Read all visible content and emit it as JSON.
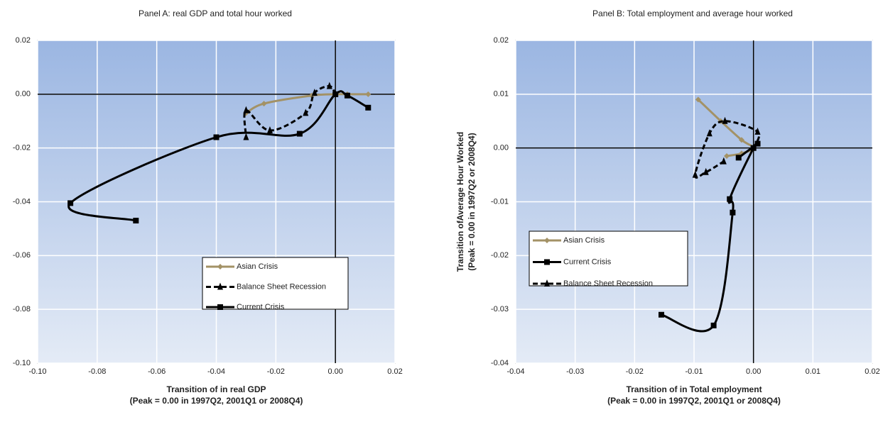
{
  "chart_data": [
    {
      "type": "line",
      "title": "Panel A: real GDP and total hour worked",
      "xlabel": [
        "Transition of in real GDP",
        "(Peak = 0.00 in 1997Q2, 2001Q1 or 2008Q4)"
      ],
      "xlim": [
        -0.1,
        0.02
      ],
      "ylim": [
        -0.1,
        0.02
      ],
      "xticks": [
        {
          "value": -0.1,
          "label": "-0.10"
        },
        -0.08,
        -0.06,
        -0.04,
        -0.02,
        {
          "value": 0,
          "label": "0.00"
        },
        0.02
      ],
      "yticks": [
        {
          "value": -0.1,
          "label": "-0.10"
        },
        -0.08,
        -0.06,
        -0.04,
        -0.02,
        {
          "value": 0,
          "label": "0.00"
        },
        0.02
      ],
      "grid": true,
      "series": [
        {
          "name": "Asian Crisis",
          "color": "#a39266",
          "marker": "diamond",
          "dashed": false,
          "x": [
            -0.03,
            -0.024,
            -0.008,
            0.0,
            0.004,
            0.011
          ],
          "values": [
            -0.007,
            -0.0035,
            -0.0005,
            0.0,
            0.0,
            0.0
          ]
        },
        {
          "name": "Balance Sheet Recession",
          "color": "#000000",
          "marker": "triangle",
          "dashed": true,
          "x": [
            0.0,
            -0.002,
            -0.007,
            -0.01,
            -0.022,
            -0.03,
            -0.03
          ],
          "values": [
            0.0,
            0.003,
            0.0005,
            -0.007,
            -0.0135,
            -0.006,
            -0.016
          ]
        },
        {
          "name": "Current Crisis",
          "color": "#000000",
          "marker": "square",
          "dashed": false,
          "x": [
            -0.067,
            -0.089,
            -0.04,
            -0.012,
            0.0,
            0.004,
            0.011
          ],
          "values": [
            -0.047,
            -0.0405,
            -0.016,
            -0.0147,
            0.0,
            -0.0005,
            -0.005
          ]
        }
      ]
    },
    {
      "type": "line",
      "title": "Panel B: Total employment and average hour worked",
      "xlabel": [
        "Transition of in Total employment",
        "(Peak = 0.00 in 1997Q2, 2001Q1 or 2008Q4)"
      ],
      "ylabel": [
        "Transition ofAverage Hour Worked",
        "(Peak = 0.00 in 1997Q2 or 2008Q4)"
      ],
      "xlim": [
        -0.04,
        0.02
      ],
      "ylim": [
        -0.04,
        0.02
      ],
      "xticks": [
        -0.04,
        -0.03,
        -0.02,
        -0.01,
        {
          "value": 0,
          "label": "0.00"
        },
        0.01,
        0.02
      ],
      "yticks": [
        -0.04,
        -0.03,
        -0.02,
        -0.01,
        {
          "value": 0,
          "label": "0.00"
        },
        0.01,
        0.02
      ],
      "grid": true,
      "series": [
        {
          "name": "Asian Crisis",
          "color": "#a39266",
          "marker": "diamond",
          "dashed": false,
          "x": [
            -0.0093,
            -0.0055,
            -0.002,
            0.0,
            -0.002,
            -0.0045
          ],
          "values": [
            0.009,
            0.005,
            0.0015,
            0.0,
            -0.001,
            -0.0015
          ]
        },
        {
          "name": "Current Crisis",
          "color": "#000000",
          "marker": "square",
          "dashed": false,
          "x": [
            -0.0155,
            -0.0067,
            -0.0035,
            -0.004,
            0.0,
            0.0007,
            -0.0025
          ],
          "values": [
            -0.031,
            -0.033,
            -0.012,
            -0.0095,
            0.0,
            0.0008,
            -0.0018
          ]
        },
        {
          "name": "Balance Sheet Recession",
          "color": "#000000",
          "marker": "triangle",
          "dashed": true,
          "x": [
            0.0,
            0.0007,
            -0.0048,
            -0.0074,
            -0.0098,
            -0.008,
            -0.005
          ],
          "values": [
            0.0,
            0.003,
            0.005,
            0.0027,
            -0.005,
            -0.0045,
            -0.0025
          ]
        }
      ]
    }
  ]
}
